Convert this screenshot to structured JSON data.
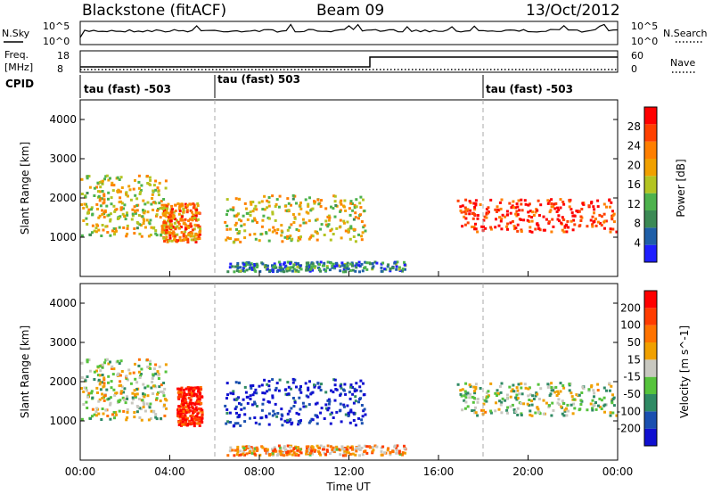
{
  "header": {
    "title_left": "Blackstone (fitACF)",
    "title_center": "Beam 09",
    "title_right": "13/Oct/2012"
  },
  "noise_panel": {
    "left_label": "N.Sky",
    "right_label": "N.Search",
    "left_ticks": [
      "10^5",
      "10^0"
    ],
    "right_ticks": [
      "10^5",
      "10^0"
    ]
  },
  "freq_panel": {
    "left_label_line1": "Freq.",
    "left_label_line2": "[MHz]",
    "left_ticks": [
      "18",
      "8"
    ],
    "right_label": "Nave",
    "right_ticks": [
      "60",
      "0"
    ]
  },
  "cpid_panel": {
    "label": "CPID",
    "segments": [
      {
        "text": "tau (fast) -503",
        "start_hour": 0
      },
      {
        "text": "tau (fast) 503",
        "start_hour": 6
      },
      {
        "text": "tau (fast) -503",
        "start_hour": 18
      }
    ]
  },
  "colors": {
    "power_scale": [
      "#1f1fff",
      "#1f5fa8",
      "#3c8a55",
      "#4db24d",
      "#b3c422",
      "#f0a000",
      "#ff7f00",
      "#ff4000",
      "#ff0000"
    ],
    "velocity_scale": [
      "#1010d0",
      "#1a4fb0",
      "#2f8a64",
      "#56c33c",
      "#c8c8c0",
      "#f0a000",
      "#ff7300",
      "#ff3c00",
      "#ff0000"
    ]
  },
  "chart_data": [
    {
      "type": "heatmap",
      "name": "power",
      "ylabel": "Slant Range [km]",
      "xlabel": "Time UT",
      "xlim": [
        0,
        24
      ],
      "ylim": [
        0,
        4500
      ],
      "yticks": [
        "1000",
        "2000",
        "3000",
        "4000"
      ],
      "colorbar_label": "Power [dB]",
      "colorbar_ticks": [
        "28",
        "24",
        "20",
        "16",
        "12",
        "8",
        "4"
      ],
      "x_tick_labels": [
        "00:00",
        "04:00",
        "08:00",
        "12:00",
        "16:00",
        "20:00",
        "00:00"
      ],
      "regions": [
        {
          "t0": 0.0,
          "t1": 3.8,
          "r0": 1050,
          "r1": 2600,
          "level": 0.55
        },
        {
          "t0": 3.6,
          "t1": 5.3,
          "r0": 900,
          "r1": 1900,
          "level": 0.7
        },
        {
          "t0": 6.4,
          "t1": 12.7,
          "r0": 900,
          "r1": 2100,
          "level": 0.55
        },
        {
          "t0": 16.8,
          "t1": 24.0,
          "r0": 1150,
          "r1": 2000,
          "level": 0.9
        },
        {
          "t0": 6.5,
          "t1": 14.5,
          "r0": 150,
          "r1": 400,
          "level": 0.25
        }
      ]
    },
    {
      "type": "heatmap",
      "name": "velocity",
      "ylabel": "Slant Range [km]",
      "xlabel": "Time UT",
      "xlim": [
        0,
        24
      ],
      "ylim": [
        0,
        4500
      ],
      "yticks": [
        "1000",
        "2000",
        "3000",
        "4000"
      ],
      "colorbar_label": "Velocity [m s^-1]",
      "colorbar_ticks": [
        "200",
        "100",
        "50",
        "15",
        "-15",
        "-50",
        "-100",
        "-200"
      ],
      "x_tick_labels": [
        "00:00",
        "04:00",
        "08:00",
        "12:00",
        "16:00",
        "20:00",
        "00:00"
      ],
      "regions": [
        {
          "t0": 0.0,
          "t1": 3.8,
          "r0": 1050,
          "r1": 2600,
          "level": 0.5
        },
        {
          "t0": 4.3,
          "t1": 5.4,
          "r0": 900,
          "r1": 1900,
          "level": 0.92
        },
        {
          "t0": 6.4,
          "t1": 12.7,
          "r0": 900,
          "r1": 2100,
          "level": 0.05
        },
        {
          "t0": 16.8,
          "t1": 24.0,
          "r0": 1150,
          "r1": 2000,
          "level": 0.45
        },
        {
          "t0": 6.5,
          "t1": 14.5,
          "r0": 150,
          "r1": 400,
          "level": 0.65
        }
      ]
    }
  ]
}
